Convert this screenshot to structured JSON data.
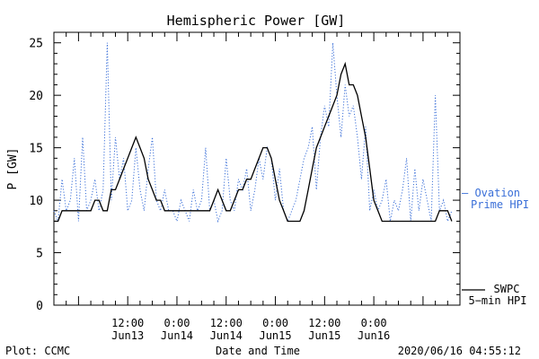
{
  "chart_data": {
    "type": "line",
    "title": "Hemispheric Power [GW]",
    "xlabel": "Date and Time",
    "ylabel": "P [GW]",
    "ylim": [
      0,
      26
    ],
    "yticks": [
      0,
      5,
      10,
      15,
      20,
      25
    ],
    "x_range_hours": [
      -6,
      93
    ],
    "x_ticks": [
      {
        "x": 12,
        "time": "12:00",
        "date": "Jun13"
      },
      {
        "x": 24,
        "time": "0:00",
        "date": "Jun14"
      },
      {
        "x": 36,
        "time": "12:00",
        "date": "Jun14"
      },
      {
        "x": 48,
        "time": "0:00",
        "date": "Jun15"
      },
      {
        "x": 60,
        "time": "12:00",
        "date": "Jun15"
      },
      {
        "x": 72,
        "time": "0:00",
        "date": "Jun16"
      }
    ],
    "grid": false,
    "legend_position": "right, outside plot",
    "series": [
      {
        "name": "Ovation Prime HPI",
        "legend_prefix": "— Ovation",
        "legend_line2": "Prime HPI",
        "color": "#3a6fd8",
        "style": "dotted",
        "points": [
          [
            -6,
            9
          ],
          [
            -5,
            8
          ],
          [
            -4,
            12
          ],
          [
            -3,
            9
          ],
          [
            -2,
            10
          ],
          [
            -1,
            14
          ],
          [
            0,
            8
          ],
          [
            1,
            16
          ],
          [
            2,
            9
          ],
          [
            3,
            10
          ],
          [
            4,
            12
          ],
          [
            5,
            9
          ],
          [
            6,
            11
          ],
          [
            7,
            25
          ],
          [
            8,
            10
          ],
          [
            9,
            16
          ],
          [
            10,
            12
          ],
          [
            11,
            14
          ],
          [
            12,
            9
          ],
          [
            13,
            10
          ],
          [
            14,
            15
          ],
          [
            15,
            11
          ],
          [
            16,
            9
          ],
          [
            17,
            13
          ],
          [
            18,
            16
          ],
          [
            19,
            10
          ],
          [
            20,
            9
          ],
          [
            21,
            11
          ],
          [
            22,
            9
          ],
          [
            23,
            9
          ],
          [
            24,
            8
          ],
          [
            25,
            10
          ],
          [
            26,
            9
          ],
          [
            27,
            8
          ],
          [
            28,
            11
          ],
          [
            29,
            9
          ],
          [
            30,
            10
          ],
          [
            31,
            15
          ],
          [
            32,
            9
          ],
          [
            33,
            10
          ],
          [
            34,
            8
          ],
          [
            35,
            9
          ],
          [
            36,
            14
          ],
          [
            37,
            10
          ],
          [
            38,
            9
          ],
          [
            39,
            12
          ],
          [
            40,
            11
          ],
          [
            41,
            13
          ],
          [
            42,
            9
          ],
          [
            43,
            11
          ],
          [
            44,
            14
          ],
          [
            45,
            12
          ],
          [
            46,
            15
          ],
          [
            47,
            14
          ],
          [
            48,
            10
          ],
          [
            49,
            13
          ],
          [
            50,
            9
          ],
          [
            51,
            8
          ],
          [
            52,
            9
          ],
          [
            53,
            10
          ],
          [
            54,
            12
          ],
          [
            55,
            14
          ],
          [
            56,
            15
          ],
          [
            57,
            17
          ],
          [
            58,
            11
          ],
          [
            59,
            16
          ],
          [
            60,
            19
          ],
          [
            61,
            17
          ],
          [
            62,
            25
          ],
          [
            63,
            20
          ],
          [
            64,
            16
          ],
          [
            65,
            21
          ],
          [
            66,
            18
          ],
          [
            67,
            19
          ],
          [
            68,
            16
          ],
          [
            69,
            12
          ],
          [
            70,
            17
          ],
          [
            71,
            9
          ],
          [
            72,
            11
          ],
          [
            73,
            9
          ],
          [
            74,
            10
          ],
          [
            75,
            12
          ],
          [
            76,
            8
          ],
          [
            77,
            10
          ],
          [
            78,
            9
          ],
          [
            79,
            11
          ],
          [
            80,
            14
          ],
          [
            81,
            8
          ],
          [
            82,
            13
          ],
          [
            83,
            9
          ],
          [
            84,
            12
          ],
          [
            85,
            10
          ],
          [
            86,
            8
          ],
          [
            87,
            20
          ],
          [
            88,
            9
          ],
          [
            89,
            10
          ],
          [
            90,
            8
          ],
          [
            91,
            9
          ]
        ]
      },
      {
        "name": "SWPC 5-min HPI",
        "legend_line1": "SWPC",
        "legend_line2": "5−min HPI",
        "color": "#000000",
        "style": "solid",
        "points": [
          [
            -6,
            8
          ],
          [
            -5,
            8
          ],
          [
            -4,
            9
          ],
          [
            -3,
            9
          ],
          [
            -2,
            9
          ],
          [
            -1,
            9
          ],
          [
            0,
            9
          ],
          [
            1,
            9
          ],
          [
            2,
            9
          ],
          [
            3,
            9
          ],
          [
            4,
            10
          ],
          [
            5,
            10
          ],
          [
            6,
            9
          ],
          [
            7,
            9
          ],
          [
            8,
            11
          ],
          [
            9,
            11
          ],
          [
            10,
            12
          ],
          [
            11,
            13
          ],
          [
            12,
            14
          ],
          [
            13,
            15
          ],
          [
            14,
            16
          ],
          [
            15,
            15
          ],
          [
            16,
            14
          ],
          [
            17,
            12
          ],
          [
            18,
            11
          ],
          [
            19,
            10
          ],
          [
            20,
            10
          ],
          [
            21,
            9
          ],
          [
            22,
            9
          ],
          [
            23,
            9
          ],
          [
            24,
            9
          ],
          [
            25,
            9
          ],
          [
            26,
            9
          ],
          [
            27,
            9
          ],
          [
            28,
            9
          ],
          [
            29,
            9
          ],
          [
            30,
            9
          ],
          [
            31,
            9
          ],
          [
            32,
            9
          ],
          [
            33,
            10
          ],
          [
            34,
            11
          ],
          [
            35,
            10
          ],
          [
            36,
            9
          ],
          [
            37,
            9
          ],
          [
            38,
            10
          ],
          [
            39,
            11
          ],
          [
            40,
            11
          ],
          [
            41,
            12
          ],
          [
            42,
            12
          ],
          [
            43,
            13
          ],
          [
            44,
            14
          ],
          [
            45,
            15
          ],
          [
            46,
            15
          ],
          [
            47,
            14
          ],
          [
            48,
            12
          ],
          [
            49,
            10
          ],
          [
            50,
            9
          ],
          [
            51,
            8
          ],
          [
            52,
            8
          ],
          [
            53,
            8
          ],
          [
            54,
            8
          ],
          [
            55,
            9
          ],
          [
            56,
            11
          ],
          [
            57,
            13
          ],
          [
            58,
            15
          ],
          [
            59,
            16
          ],
          [
            60,
            17
          ],
          [
            61,
            18
          ],
          [
            62,
            19
          ],
          [
            63,
            20
          ],
          [
            64,
            22
          ],
          [
            65,
            23
          ],
          [
            66,
            21
          ],
          [
            67,
            21
          ],
          [
            68,
            20
          ],
          [
            69,
            18
          ],
          [
            70,
            16
          ],
          [
            71,
            13
          ],
          [
            72,
            10
          ],
          [
            73,
            9
          ],
          [
            74,
            8
          ],
          [
            75,
            8
          ],
          [
            76,
            8
          ],
          [
            77,
            8
          ],
          [
            78,
            8
          ],
          [
            79,
            8
          ],
          [
            80,
            8
          ],
          [
            81,
            8
          ],
          [
            82,
            8
          ],
          [
            83,
            8
          ],
          [
            84,
            8
          ],
          [
            85,
            8
          ],
          [
            86,
            8
          ],
          [
            87,
            8
          ],
          [
            88,
            9
          ],
          [
            89,
            9
          ],
          [
            90,
            9
          ],
          [
            91,
            8
          ]
        ]
      }
    ]
  },
  "footer": {
    "plot_credit": "Plot: CCMC",
    "timestamp": "2020/06/16 04:55:12"
  }
}
